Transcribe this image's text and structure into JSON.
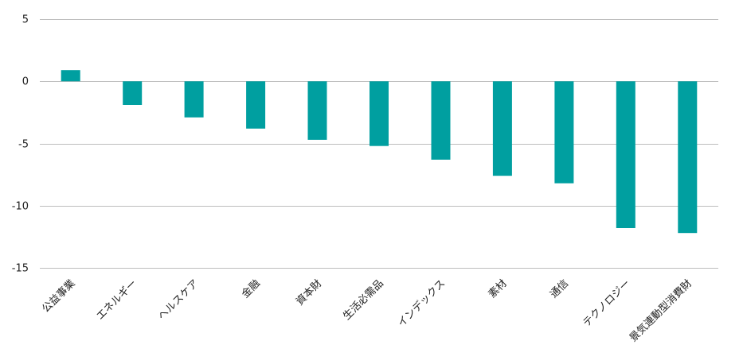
{
  "chart_data": {
    "type": "bar",
    "categories": [
      "公益事業",
      "エネルギー",
      "ヘルスケア",
      "金融",
      "資本財",
      "生活必需品",
      "インデックス",
      "素材",
      "通信",
      "テクノロジー",
      "景気連動型消費財"
    ],
    "values": [
      0.9,
      -1.9,
      -2.9,
      -3.8,
      -4.7,
      -5.2,
      -6.3,
      -7.6,
      -8.2,
      -11.8,
      -12.2
    ],
    "ylim": [
      -15,
      5
    ],
    "yticks": [
      5,
      0,
      -5,
      -10,
      -15
    ],
    "ytick_labels": [
      "5",
      "0",
      "-5",
      "-10",
      "-15"
    ],
    "title": "",
    "xlabel": "",
    "ylabel": "",
    "grid": true,
    "bar_color": "#009fa0"
  }
}
